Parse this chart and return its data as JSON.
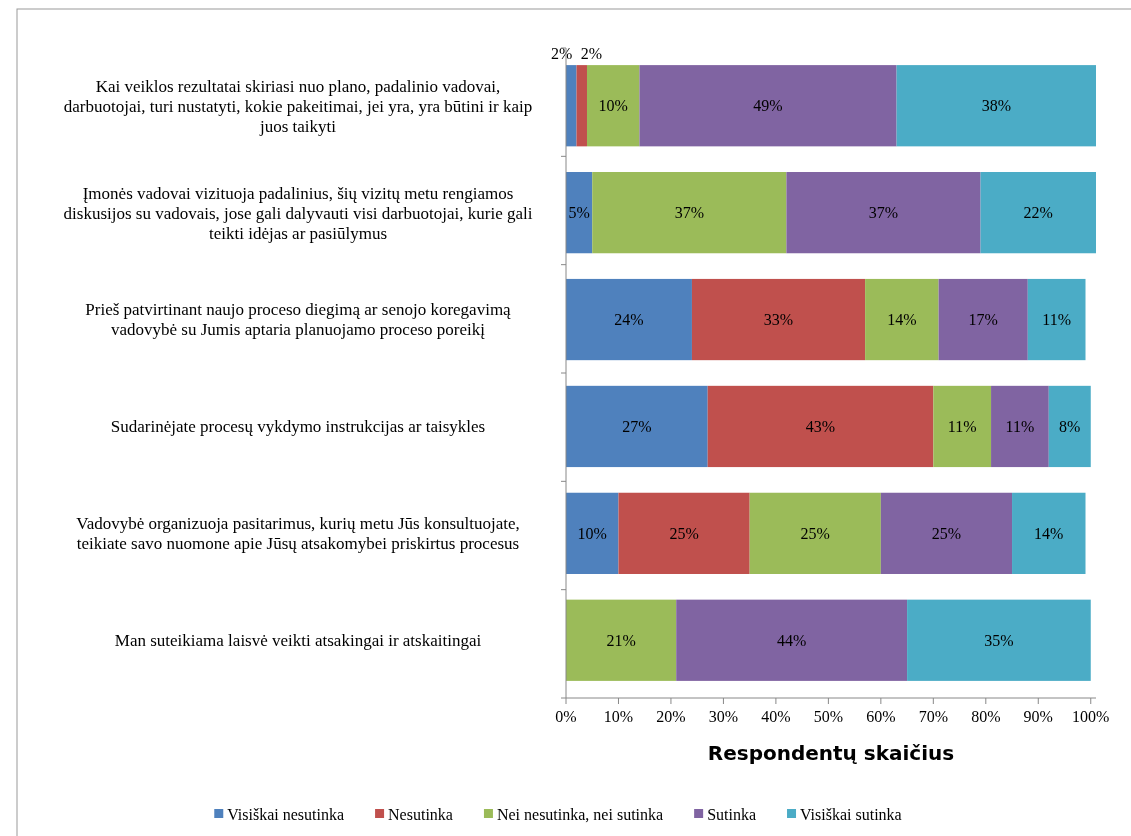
{
  "chart_data": {
    "type": "bar",
    "orientation": "horizontal",
    "stacked": true,
    "xlabel": "Respondentų skaičius",
    "legend": "bottom",
    "grid": false,
    "categories": [
      "Kai veiklos rezultatai skiriasi nuo plano, padalinio vadovai, darbuotojai, turi nustatyti, kokie pakeitimai, jei yra, yra būtini ir kaip juos taikyti",
      "Įmonės vadovai vizituoja padalinius, šių vizitų metu rengiamos diskusijos su vadovais, jose gali dalyvauti visi darbuotojai, kurie gali teikti idėjas ar pasiūlymus",
      "Prieš patvirtinant naujo proceso diegimą ar senojo koregavimą vadovybė su Jumis aptaria planuojamo proceso poreikį",
      "Sudarinėjate procesų vykdymo instrukcijas ar taisykles",
      "Vadovybė organizuoja pasitarimus, kurių metu Jūs konsultuojate, teikiate savo nuomone apie Jūsų atsakomybei priskirtus procesus",
      "Man suteikiama laisvė veikti atsakingai ir atskaitingai"
    ],
    "xlim": [
      0,
      101
    ],
    "xticks": [
      {
        "value": 0,
        "label": "0%"
      },
      {
        "value": 10,
        "label": "10%"
      },
      {
        "value": 20,
        "label": "20%"
      },
      {
        "value": 30,
        "label": "30%"
      },
      {
        "value": 40,
        "label": "40%"
      },
      {
        "value": 50,
        "label": "50%"
      },
      {
        "value": 60,
        "label": "60%"
      },
      {
        "value": 70,
        "label": "70%"
      },
      {
        "value": 80,
        "label": "80%"
      },
      {
        "value": 90,
        "label": "90%"
      },
      {
        "value": 100,
        "label": "100%"
      }
    ],
    "series": [
      {
        "name": "Visiškai nesutinka",
        "color": "#4f81bd",
        "values": [
          2,
          5,
          24,
          27,
          10,
          null
        ],
        "value_labels": [
          "2%",
          "5%",
          "24%",
          "27%",
          "10%",
          null
        ]
      },
      {
        "name": "Nesutinka",
        "color": "#c0504d",
        "values": [
          2,
          null,
          33,
          43,
          25,
          null
        ],
        "value_labels": [
          "2%",
          null,
          "33%",
          "43%",
          "25%",
          null
        ]
      },
      {
        "name": "Nei nesutinka, nei sutinka",
        "color": "#9bbb59",
        "values": [
          10,
          37,
          14,
          11,
          25,
          21
        ],
        "value_labels": [
          "10%",
          "37%",
          "14%",
          "11%",
          "25%",
          "21%"
        ]
      },
      {
        "name": "Sutinka",
        "color": "#8064a2",
        "values": [
          49,
          37,
          17,
          11,
          25,
          44
        ],
        "value_labels": [
          "49%",
          "37%",
          "17%",
          "11%",
          "25%",
          "44%"
        ]
      },
      {
        "name": "Visiškai sutinka",
        "color": "#4bacc6",
        "values": [
          38,
          22,
          11,
          8,
          14,
          35
        ],
        "value_labels": [
          "38%",
          "22%",
          "11%",
          "8%",
          "14%",
          "35%"
        ]
      }
    ]
  }
}
